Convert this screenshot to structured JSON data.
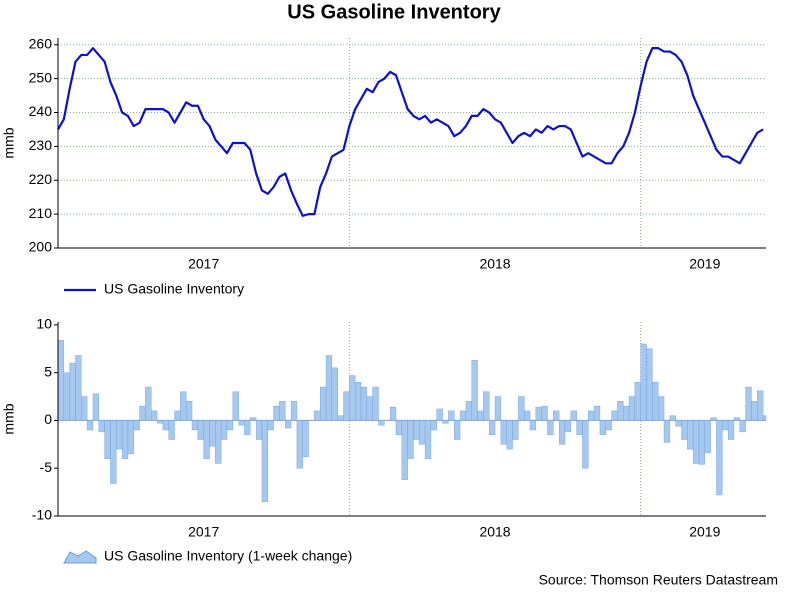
{
  "title": "US Gasoline Inventory",
  "source": "Source: Thomson Reuters Datastream",
  "chart_data": [
    {
      "type": "line",
      "y_label": "mmb",
      "grid": true,
      "x": [
        2017.0,
        2017.02,
        2017.04,
        2017.06,
        2017.08,
        2017.1,
        2017.12,
        2017.14,
        2017.16,
        2017.18,
        2017.2,
        2017.22,
        2017.24,
        2017.26,
        2017.28,
        2017.3,
        2017.32,
        2017.34,
        2017.36,
        2017.38,
        2017.4,
        2017.42,
        2017.44,
        2017.46,
        2017.48,
        2017.5,
        2017.52,
        2017.54,
        2017.56,
        2017.58,
        2017.6,
        2017.62,
        2017.64,
        2017.66,
        2017.68,
        2017.7,
        2017.72,
        2017.74,
        2017.76,
        2017.78,
        2017.8,
        2017.82,
        2017.84,
        2017.86,
        2017.88,
        2017.9,
        2017.92,
        2017.94,
        2017.96,
        2017.98,
        2018.0,
        2018.02,
        2018.04,
        2018.06,
        2018.08,
        2018.1,
        2018.12,
        2018.14,
        2018.16,
        2018.18,
        2018.2,
        2018.22,
        2018.24,
        2018.26,
        2018.28,
        2018.3,
        2018.32,
        2018.34,
        2018.36,
        2018.38,
        2018.4,
        2018.42,
        2018.44,
        2018.46,
        2018.48,
        2018.5,
        2018.52,
        2018.54,
        2018.56,
        2018.58,
        2018.6,
        2018.62,
        2018.64,
        2018.66,
        2018.68,
        2018.7,
        2018.72,
        2018.74,
        2018.76,
        2018.78,
        2018.8,
        2018.82,
        2018.84,
        2018.86,
        2018.88,
        2018.9,
        2018.92,
        2018.94,
        2018.96,
        2018.98,
        2019.0,
        2019.02,
        2019.04,
        2019.06,
        2019.08,
        2019.1,
        2019.12,
        2019.14,
        2019.16,
        2019.18,
        2019.2,
        2019.22,
        2019.24,
        2019.26,
        2019.28,
        2019.3,
        2019.32,
        2019.34,
        2019.36,
        2019.38,
        2019.4,
        2019.42
      ],
      "series": [
        {
          "name": "US Gasoline Inventory",
          "color": "#0f0fd2",
          "values": [
            235,
            238,
            247,
            255,
            257,
            257,
            259,
            257,
            255,
            249,
            245,
            240,
            239,
            236,
            237,
            241,
            241,
            241,
            241,
            240,
            237,
            240,
            243,
            242,
            242,
            238,
            236,
            232,
            230,
            228,
            231,
            231,
            231,
            229,
            222,
            217,
            216,
            218,
            221,
            222,
            217,
            213,
            209.5,
            210,
            210,
            218,
            222,
            227,
            228,
            229,
            236,
            241,
            244,
            247,
            246,
            249,
            250,
            252,
            251,
            246,
            241,
            239,
            238,
            239,
            237,
            238,
            237,
            236,
            233,
            234,
            236,
            239,
            239,
            241,
            240,
            238,
            237,
            234,
            231,
            233,
            234,
            233,
            235,
            234,
            236,
            235,
            236,
            236,
            235,
            231,
            227,
            228,
            227,
            226,
            225,
            225,
            228,
            230,
            234,
            240,
            248,
            255,
            259,
            259,
            258,
            258,
            257,
            255,
            251,
            245,
            241,
            237,
            233,
            229,
            227,
            227,
            226,
            225,
            228,
            231,
            234,
            235
          ]
        }
      ],
      "xlim": [
        2017,
        2019.43
      ],
      "xticks": [
        {
          "value": 2017.5,
          "label": "2017"
        },
        {
          "value": 2018.5,
          "label": "2018"
        },
        {
          "value": 2019.22,
          "label": "2019"
        }
      ],
      "x_gridlines": [
        2018,
        2019
      ],
      "ylim": [
        200,
        262
      ],
      "yticks": [
        200,
        210,
        220,
        230,
        240,
        250,
        260
      ]
    },
    {
      "type": "area",
      "y_label": "mmb",
      "grid": false,
      "x": [
        2017.0,
        2017.02,
        2017.04,
        2017.06,
        2017.08,
        2017.1,
        2017.12,
        2017.14,
        2017.16,
        2017.18,
        2017.2,
        2017.22,
        2017.24,
        2017.26,
        2017.28,
        2017.3,
        2017.32,
        2017.34,
        2017.36,
        2017.38,
        2017.4,
        2017.42,
        2017.44,
        2017.46,
        2017.48,
        2017.5,
        2017.52,
        2017.54,
        2017.56,
        2017.58,
        2017.6,
        2017.62,
        2017.64,
        2017.66,
        2017.68,
        2017.7,
        2017.72,
        2017.74,
        2017.76,
        2017.78,
        2017.8,
        2017.82,
        2017.84,
        2017.86,
        2017.88,
        2017.9,
        2017.92,
        2017.94,
        2017.96,
        2017.98,
        2018.0,
        2018.02,
        2018.04,
        2018.06,
        2018.08,
        2018.1,
        2018.12,
        2018.14,
        2018.16,
        2018.18,
        2018.2,
        2018.22,
        2018.24,
        2018.26,
        2018.28,
        2018.3,
        2018.32,
        2018.34,
        2018.36,
        2018.38,
        2018.4,
        2018.42,
        2018.44,
        2018.46,
        2018.48,
        2018.5,
        2018.52,
        2018.54,
        2018.56,
        2018.58,
        2018.6,
        2018.62,
        2018.64,
        2018.66,
        2018.68,
        2018.7,
        2018.72,
        2018.74,
        2018.76,
        2018.78,
        2018.8,
        2018.82,
        2018.84,
        2018.86,
        2018.88,
        2018.9,
        2018.92,
        2018.94,
        2018.96,
        2018.98,
        2019.0,
        2019.02,
        2019.04,
        2019.06,
        2019.08,
        2019.1,
        2019.12,
        2019.14,
        2019.16,
        2019.18,
        2019.2,
        2019.22,
        2019.24,
        2019.26,
        2019.28,
        2019.3,
        2019.32,
        2019.34,
        2019.36,
        2019.38,
        2019.4,
        2019.42
      ],
      "series": [
        {
          "name": "US Gasoline Inventory (1-week change)",
          "color": "#a6c8ef",
          "values": [
            8.4,
            5,
            6,
            6.8,
            2.5,
            -1,
            2.8,
            -1.2,
            -4,
            -6.6,
            -3,
            -4,
            -3.5,
            -1,
            1.5,
            3.5,
            1,
            -0.3,
            -1,
            -2,
            1,
            3,
            2,
            -1,
            -2,
            -4,
            -2.7,
            -4.5,
            -2,
            -1,
            3,
            -0.5,
            -1.5,
            0.3,
            -2,
            -8.5,
            -1,
            1.5,
            2,
            -0.8,
            2,
            -5,
            -3.8,
            0,
            1,
            3.5,
            6.8,
            5.5,
            0.5,
            3,
            4.7,
            4,
            3.5,
            2.5,
            3.5,
            -0.5,
            0,
            1.4,
            -1.5,
            -6.2,
            -4,
            -2,
            -2.5,
            -4,
            -1,
            1.2,
            -0.3,
            1,
            -2,
            1,
            2,
            6.3,
            1,
            3,
            -1.5,
            2.5,
            -2.5,
            -3,
            -2,
            2.5,
            1,
            -1,
            1.4,
            1.5,
            -1.5,
            1,
            -2.5,
            -1.2,
            1,
            -1.5,
            -5,
            1,
            1.5,
            -1.5,
            -1,
            1,
            2,
            1.5,
            2.5,
            4,
            8,
            7.5,
            4,
            2.5,
            -2.3,
            0.5,
            -0.6,
            -2,
            -3,
            -4.5,
            -4.6,
            -3.4,
            0.3,
            -7.8,
            -1,
            -2,
            0.3,
            -1.2,
            3.5,
            2,
            3.1,
            0.5
          ]
        }
      ],
      "xlim": [
        2017,
        2019.43
      ],
      "xticks": [
        {
          "value": 2017.5,
          "label": "2017"
        },
        {
          "value": 2018.5,
          "label": "2018"
        },
        {
          "value": 2019.22,
          "label": "2019"
        }
      ],
      "x_gridlines": [
        2018,
        2019
      ],
      "ylim": [
        -10,
        10.3
      ],
      "yticks": [
        -10,
        -5,
        0,
        5,
        10
      ]
    }
  ]
}
